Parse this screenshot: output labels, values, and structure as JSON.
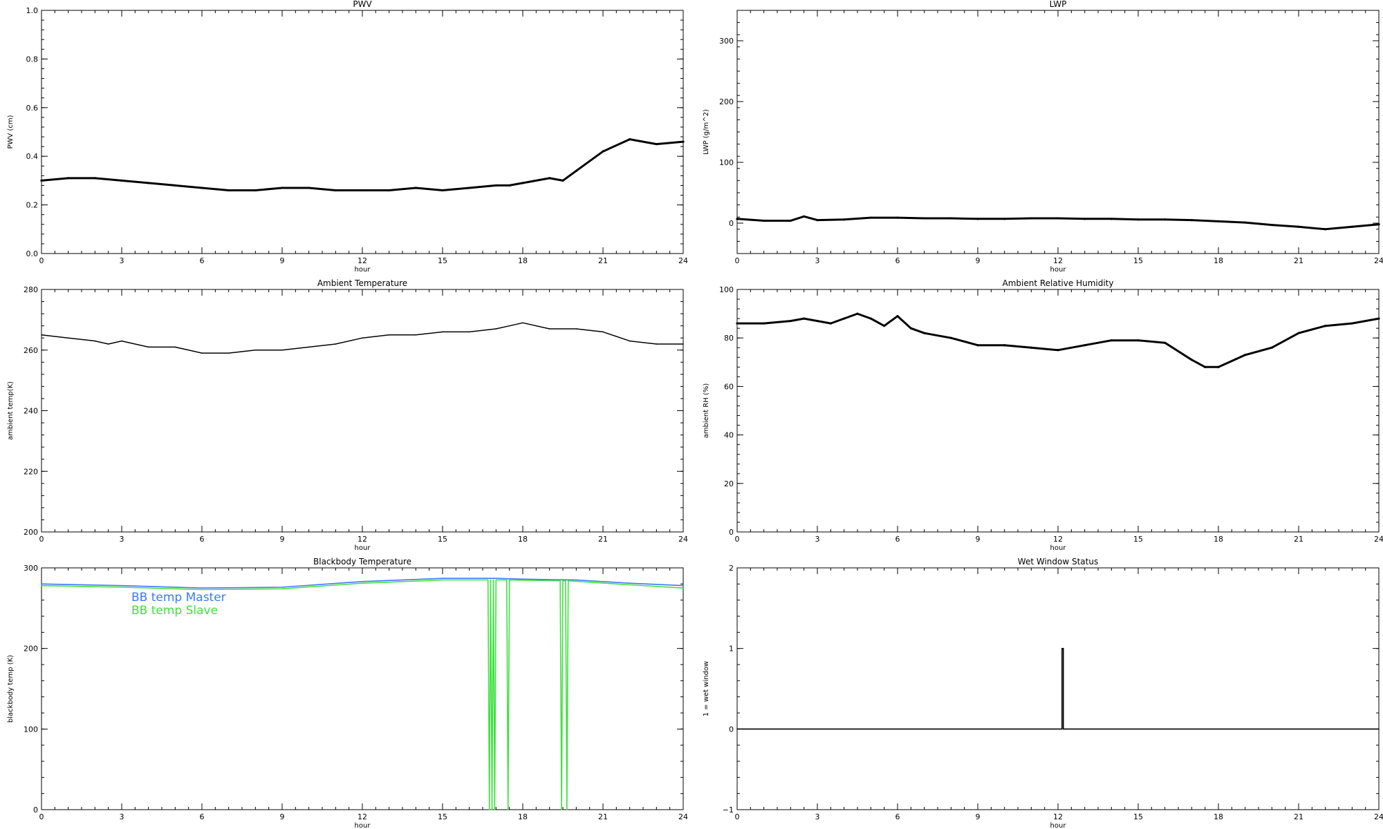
{
  "chart_data": [
    {
      "type": "scatter",
      "title": "PWV",
      "xlabel": "hour",
      "ylabel": "PWV (cm)",
      "xlim": [
        0,
        24
      ],
      "ylim": [
        0.0,
        1.0
      ],
      "xticks": [
        0,
        3,
        6,
        9,
        12,
        15,
        18,
        21,
        24
      ],
      "xtick_labels": [
        "0",
        "3",
        "6",
        "9",
        "12",
        "15",
        "18",
        "21",
        "24"
      ],
      "yticks": [
        0.0,
        0.2,
        0.4,
        0.6,
        0.8,
        1.0
      ],
      "ytick_labels": [
        "0.0",
        "0.2",
        "0.4",
        "0.6",
        "0.8",
        "1.0"
      ],
      "series": [
        {
          "color": "#000000",
          "x": [
            0,
            1,
            2,
            3,
            4,
            5,
            6,
            7,
            8,
            9,
            10,
            11,
            12,
            13,
            14,
            15,
            16,
            17,
            17.5,
            18,
            19,
            19.5,
            20,
            21,
            22,
            23,
            24
          ],
          "y": [
            0.3,
            0.31,
            0.31,
            0.3,
            0.29,
            0.28,
            0.27,
            0.26,
            0.26,
            0.27,
            0.27,
            0.26,
            0.26,
            0.26,
            0.27,
            0.26,
            0.27,
            0.28,
            0.28,
            0.29,
            0.31,
            0.3,
            0.34,
            0.42,
            0.47,
            0.45,
            0.46
          ]
        }
      ]
    },
    {
      "type": "scatter",
      "title": "LWP",
      "xlabel": "hour",
      "ylabel": "LWP (g/m^2)",
      "xlim": [
        0,
        24
      ],
      "ylim": [
        -50,
        350
      ],
      "xticks": [
        0,
        3,
        6,
        9,
        12,
        15,
        18,
        21,
        24
      ],
      "xtick_labels": [
        "0",
        "3",
        "6",
        "9",
        "12",
        "15",
        "18",
        "21",
        "24"
      ],
      "yticks": [
        0,
        100,
        200,
        300
      ],
      "ytick_labels": [
        "0",
        "100",
        "200",
        "300"
      ],
      "series": [
        {
          "color": "#000000",
          "x": [
            0,
            1,
            2,
            2.5,
            3,
            4,
            5,
            6,
            7,
            8,
            9,
            10,
            11,
            12,
            13,
            14,
            15,
            16,
            17,
            18,
            19,
            20,
            21,
            22,
            23,
            24
          ],
          "y": [
            7,
            4,
            4,
            11,
            5,
            6,
            9,
            9,
            8,
            8,
            7,
            7,
            8,
            8,
            7,
            7,
            6,
            6,
            5,
            3,
            1,
            -3,
            -6,
            -10,
            -6,
            -2
          ]
        }
      ]
    },
    {
      "type": "line",
      "title": "Ambient Temperature",
      "xlabel": "hour",
      "ylabel": "ambient temp(K)",
      "xlim": [
        0,
        24
      ],
      "ylim": [
        200,
        280
      ],
      "xticks": [
        0,
        3,
        6,
        9,
        12,
        15,
        18,
        21,
        24
      ],
      "xtick_labels": [
        "0",
        "3",
        "6",
        "9",
        "12",
        "15",
        "18",
        "21",
        "24"
      ],
      "yticks": [
        200,
        220,
        240,
        260,
        280
      ],
      "ytick_labels": [
        "200",
        "220",
        "240",
        "260",
        "280"
      ],
      "series": [
        {
          "color": "#000000",
          "x": [
            0,
            1,
            2,
            2.5,
            3,
            4,
            5,
            6,
            7,
            8,
            9,
            10,
            11,
            12,
            13,
            14,
            15,
            16,
            17,
            17.5,
            18,
            19,
            20,
            21,
            22,
            23,
            24
          ],
          "y": [
            265,
            264,
            263,
            262,
            263,
            261,
            261,
            259,
            259,
            260,
            260,
            261,
            262,
            264,
            265,
            265,
            266,
            266,
            267,
            268,
            269,
            267,
            267,
            266,
            263,
            262,
            262
          ]
        }
      ]
    },
    {
      "type": "scatter",
      "title": "Ambient Relative Humidity",
      "xlabel": "hour",
      "ylabel": "ambient RH (%)",
      "xlim": [
        0,
        24
      ],
      "ylim": [
        0,
        100
      ],
      "xticks": [
        0,
        3,
        6,
        9,
        12,
        15,
        18,
        21,
        24
      ],
      "xtick_labels": [
        "0",
        "3",
        "6",
        "9",
        "12",
        "15",
        "18",
        "21",
        "24"
      ],
      "yticks": [
        0,
        20,
        40,
        60,
        80,
        100
      ],
      "ytick_labels": [
        "0",
        "20",
        "40",
        "60",
        "80",
        "100"
      ],
      "series": [
        {
          "color": "#000000",
          "x": [
            0,
            1,
            2,
            2.5,
            3,
            3.5,
            4,
            4.5,
            5,
            5.5,
            6,
            6.5,
            7,
            8,
            9,
            10,
            11,
            12,
            13,
            14,
            15,
            16,
            17,
            17.5,
            18,
            19,
            20,
            21,
            22,
            23,
            24
          ],
          "y": [
            86,
            86,
            87,
            88,
            87,
            86,
            88,
            90,
            88,
            85,
            89,
            84,
            82,
            80,
            77,
            77,
            76,
            75,
            77,
            79,
            79,
            78,
            71,
            68,
            68,
            73,
            76,
            82,
            85,
            86,
            88
          ]
        }
      ]
    },
    {
      "type": "line",
      "title": "Blackbody Temperature",
      "xlabel": "hour",
      "ylabel": "blackbody temp (K)",
      "xlim": [
        0,
        24
      ],
      "ylim": [
        0,
        300
      ],
      "xticks": [
        0,
        3,
        6,
        9,
        12,
        15,
        18,
        21,
        24
      ],
      "xtick_labels": [
        "0",
        "3",
        "6",
        "9",
        "12",
        "15",
        "18",
        "21",
        "24"
      ],
      "yticks": [
        0,
        100,
        200,
        300
      ],
      "ytick_labels": [
        "0",
        "100",
        "200",
        "300"
      ],
      "legend": "top-left",
      "series": [
        {
          "name": "BB temp Master",
          "color": "#3a78ff",
          "x": [
            0,
            3,
            6,
            9,
            12,
            15,
            17,
            18,
            20,
            22,
            24
          ],
          "y": [
            280,
            278,
            275,
            276,
            283,
            287,
            287,
            286,
            285,
            281,
            278
          ]
        },
        {
          "name": "BB temp Slave",
          "color": "#40e040",
          "x": [
            0,
            3,
            6,
            9,
            12,
            15,
            16.7,
            16.75,
            16.8,
            16.85,
            16.9,
            16.95,
            17.0,
            17.4,
            17.45,
            17.5,
            19.4,
            19.45,
            19.5,
            19.6,
            19.65,
            19.7,
            22,
            24
          ],
          "y": [
            278,
            276,
            273,
            274,
            281,
            285,
            285,
            0,
            285,
            0,
            285,
            0,
            285,
            285,
            0,
            285,
            284,
            0,
            284,
            284,
            0,
            284,
            279,
            275
          ]
        }
      ]
    },
    {
      "type": "line",
      "title": "Wet Window Status",
      "xlabel": "hour",
      "ylabel": "1 = wet window",
      "xlim": [
        0,
        24
      ],
      "ylim": [
        -1,
        2
      ],
      "xticks": [
        0,
        3,
        6,
        9,
        12,
        15,
        18,
        21,
        24
      ],
      "xtick_labels": [
        "0",
        "3",
        "6",
        "9",
        "12",
        "15",
        "18",
        "21",
        "24"
      ],
      "yticks": [
        -1,
        0,
        1,
        2
      ],
      "ytick_labels": [
        "−1",
        "0",
        "1",
        "2"
      ],
      "series": [
        {
          "color": "#000000",
          "x": [
            0,
            12.15,
            12.15,
            12.2,
            12.2,
            24
          ],
          "y": [
            0,
            0,
            1,
            1,
            0,
            0
          ]
        }
      ]
    }
  ]
}
